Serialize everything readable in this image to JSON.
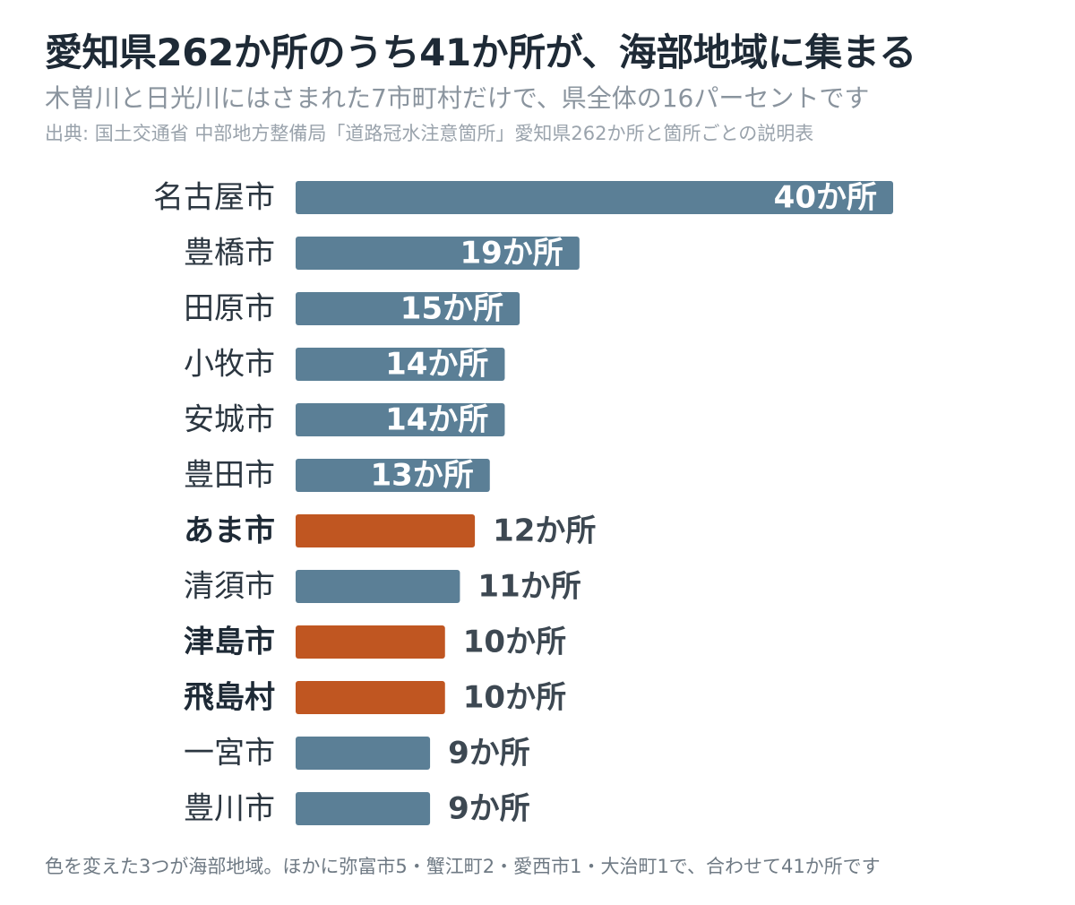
{
  "header": {
    "title": "愛知県262か所のうち41か所が、海部地域に集まる",
    "subtitle": "木曽川と日光川にはさまれた7市町村だけで、県全体の16パーセントです",
    "source": "出典: 国土交通省 中部地方整備局「道路冠水注意箇所」愛知県262か所と箇所ごとの説明表"
  },
  "chart_data": {
    "type": "bar",
    "orientation": "horizontal",
    "categories": [
      "名古屋市",
      "豊橋市",
      "田原市",
      "小牧市",
      "安城市",
      "豊田市",
      "あま市",
      "清須市",
      "津島市",
      "飛島村",
      "一宮市",
      "豊川市"
    ],
    "values": [
      40,
      19,
      15,
      14,
      14,
      13,
      12,
      11,
      10,
      10,
      9,
      9
    ],
    "value_labels": [
      "40か所",
      "19か所",
      "15か所",
      "14か所",
      "14か所",
      "13か所",
      "12か所",
      "11か所",
      "10か所",
      "10か所",
      "9か所",
      "9か所"
    ],
    "highlighted": [
      false,
      false,
      false,
      false,
      false,
      false,
      true,
      false,
      true,
      true,
      false,
      false
    ],
    "xlim": [
      0,
      40
    ],
    "grid": false,
    "legend": "none"
  },
  "colors": {
    "bar_default": "#5b7f96",
    "bar_highlight": "#c05621",
    "label_inside": "#ffffff",
    "label_outside": "#3d4852"
  },
  "footnote": "色を変えた3つが海部地域。ほかに弥富市5・蟹江町2・愛西市1・大治町1で、合わせて41か所です"
}
